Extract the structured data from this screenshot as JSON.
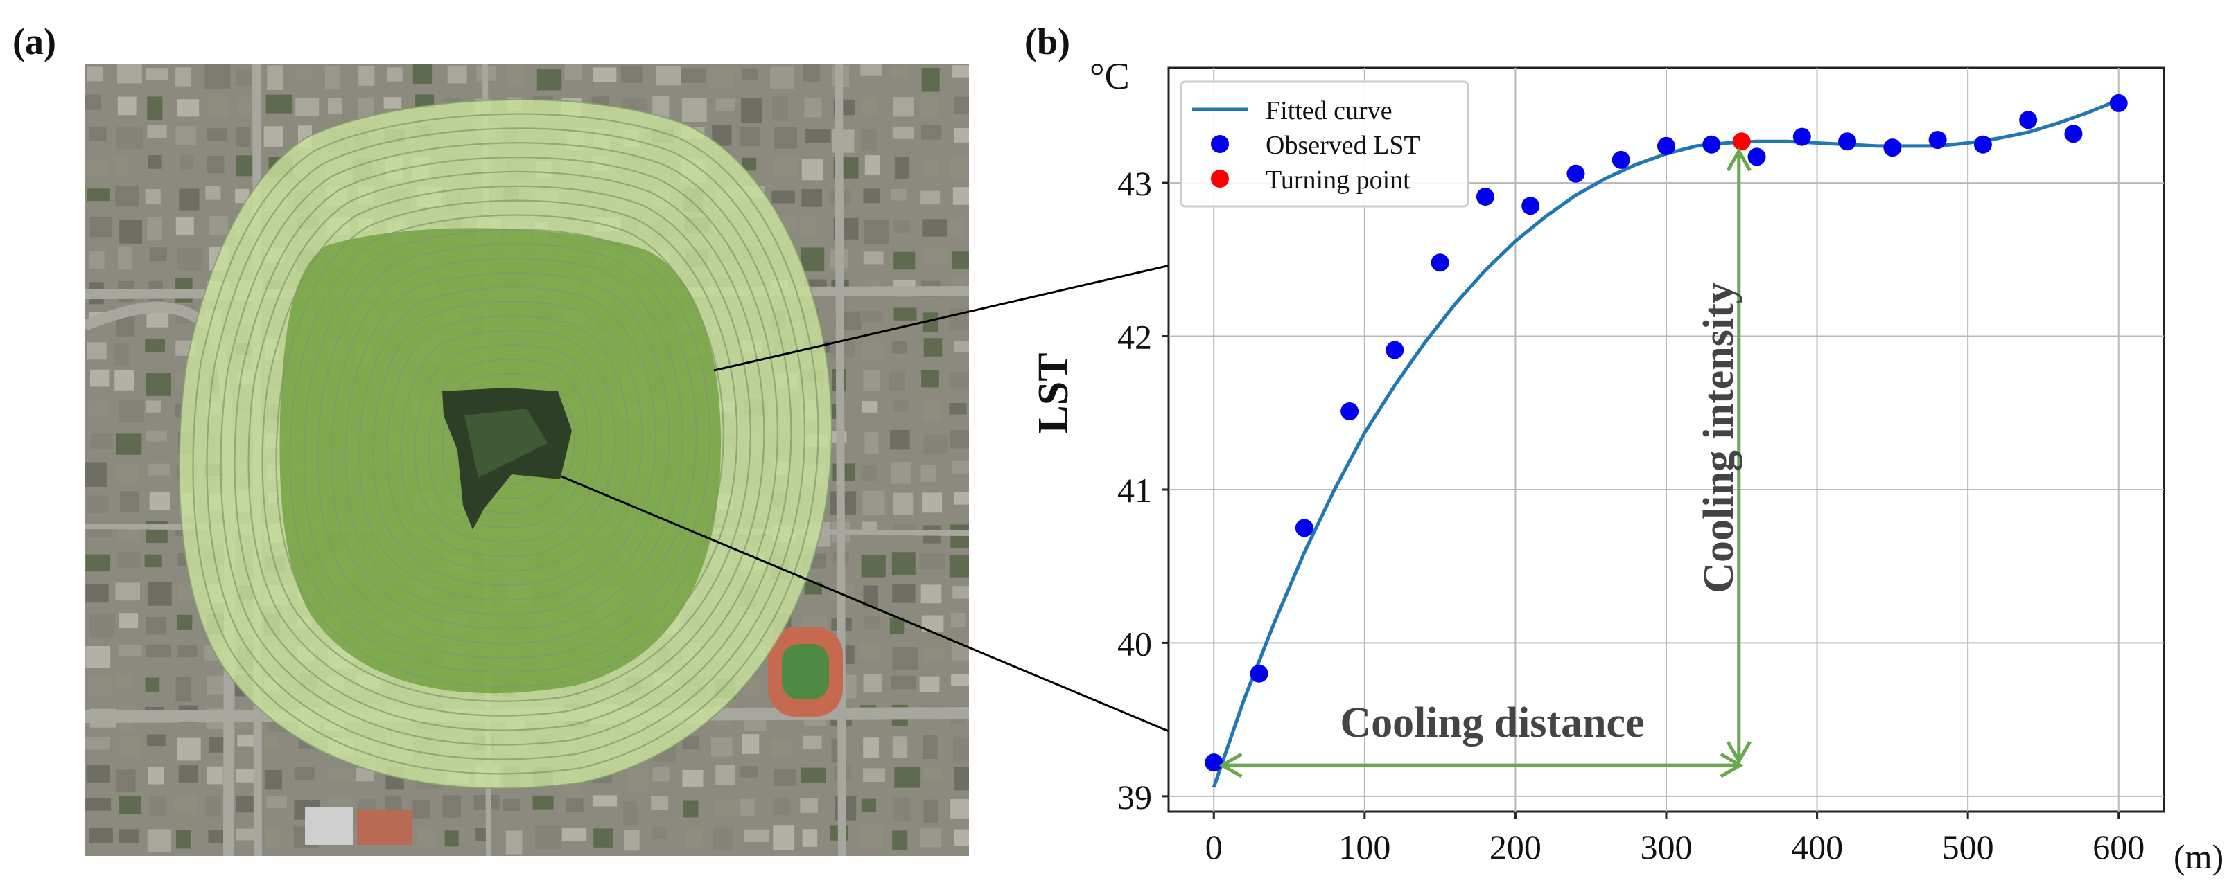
{
  "panel_a": {
    "label": "(a)"
  },
  "panel_b": {
    "label": "(b)"
  },
  "chart_data": {
    "type": "line",
    "title": "",
    "xlabel": "",
    "ylabel": "LST",
    "y_unit": "°C",
    "x_unit": "(m)",
    "xlim": [
      -30,
      630
    ],
    "ylim": [
      38.9,
      43.75
    ],
    "x_ticks": [
      0,
      100,
      200,
      300,
      400,
      500,
      600
    ],
    "y_ticks": [
      39,
      40,
      41,
      42,
      43
    ],
    "grid": true,
    "legend": {
      "position": "top-left",
      "entries": [
        "Fitted curve",
        "Observed LST",
        "Turning point"
      ]
    },
    "series": [
      {
        "name": "Observed LST",
        "kind": "scatter",
        "color": "#0000ee",
        "x": [
          0,
          30,
          60,
          90,
          120,
          150,
          180,
          210,
          240,
          270,
          300,
          330,
          360,
          390,
          420,
          450,
          480,
          510,
          540,
          570,
          600
        ],
        "y": [
          39.22,
          39.8,
          40.75,
          41.51,
          41.91,
          42.48,
          42.91,
          42.85,
          43.06,
          43.15,
          43.24,
          43.25,
          43.17,
          43.3,
          43.27,
          43.23,
          43.28,
          43.25,
          43.41,
          43.32,
          43.52
        ]
      },
      {
        "name": "Turning point",
        "kind": "scatter",
        "color": "#ff0000",
        "x": [
          350
        ],
        "y": [
          43.27
        ]
      },
      {
        "name": "Fitted curve",
        "kind": "line",
        "color": "#1f77b4",
        "x": [
          0,
          20,
          40,
          60,
          80,
          100,
          120,
          140,
          160,
          180,
          200,
          220,
          240,
          260,
          280,
          300,
          320,
          340,
          360,
          380,
          400,
          420,
          440,
          460,
          480,
          500,
          520,
          540,
          560,
          580,
          600
        ],
        "y": [
          39.06,
          39.63,
          40.13,
          40.59,
          41.0,
          41.37,
          41.68,
          41.96,
          42.21,
          42.43,
          42.62,
          42.78,
          42.92,
          43.03,
          43.12,
          43.19,
          43.24,
          43.26,
          43.27,
          43.27,
          43.26,
          43.25,
          43.24,
          43.24,
          43.24,
          43.26,
          43.29,
          43.33,
          43.39,
          43.46,
          43.54
        ]
      }
    ],
    "annotations": {
      "cooling_distance": {
        "label": "Cooling distance",
        "x_from": 0,
        "x_to": 350,
        "y": 39.22
      },
      "cooling_intensity": {
        "label": "Cooling intensity",
        "x": 350,
        "y_from": 39.22,
        "y_to": 43.27
      }
    }
  },
  "colors": {
    "fitted_line": "#1f77b4",
    "observed": "#0000ee",
    "turning": "#ff0000",
    "arrow": "#6aa84f",
    "buffer_ring": "#c9e29c",
    "buffer_inner": "#6f9f3c"
  }
}
